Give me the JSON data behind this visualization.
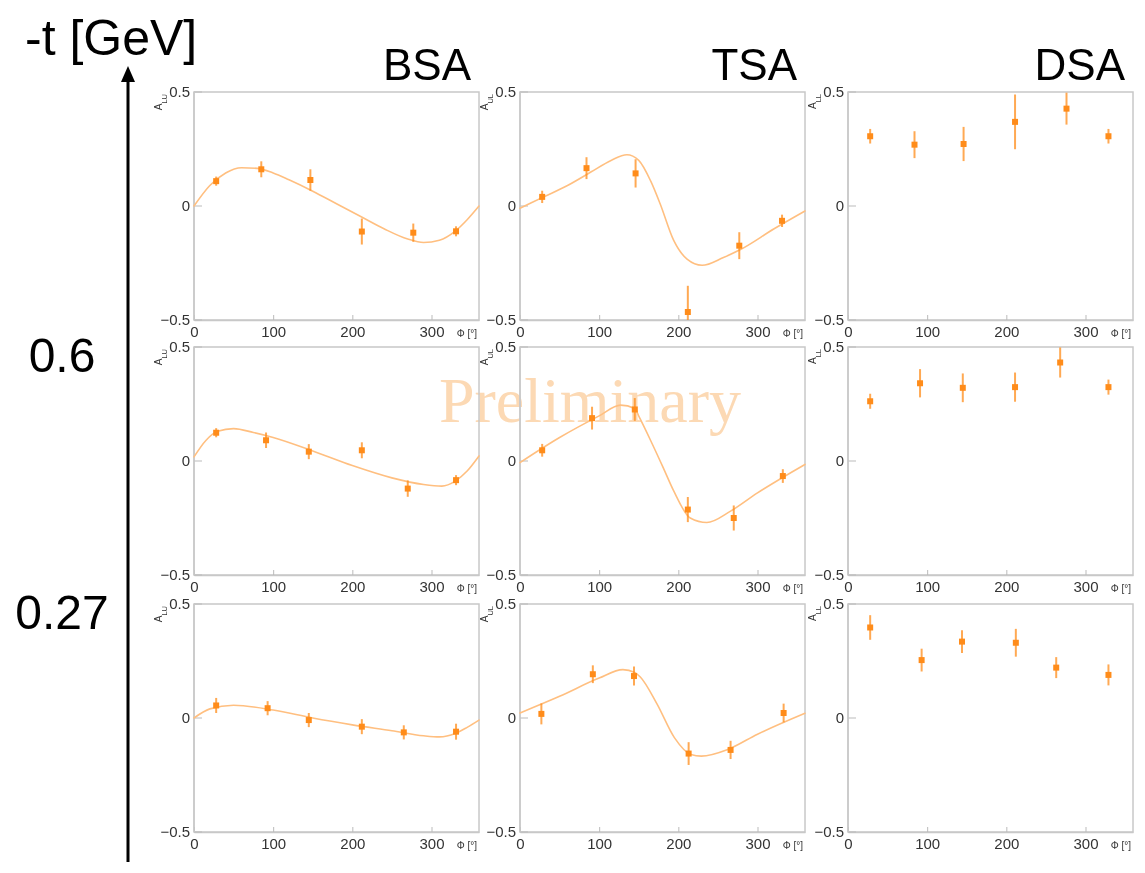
{
  "chart_data": [
    {
      "type": "scatter",
      "title": "BSA",
      "xlabel": "Φ [°]",
      "ylabel": "A$_{LU}$",
      "annotations": [
        "-t [GeV]"
      ],
      "xlim": [
        0,
        360
      ],
      "xticks": [
        0,
        100,
        200,
        300
      ],
      "ylim": [
        -0.5,
        0.5
      ],
      "yticks": [
        -0.5,
        0,
        0.5
      ],
      "marker": "square",
      "series": [
        {
          "color": "#ff8c1a",
          "x": [
            28,
            85,
            147,
            212,
            277,
            331
          ],
          "values": [
            0.109,
            0.161,
            0.114,
            -0.112,
            -0.117,
            -0.111
          ],
          "errors": [
            0.02,
            0.035,
            0.047,
            0.057,
            0.04,
            0.022
          ]
        },
        {
          "type": "line",
          "marker": "none",
          "color": "#ffbf80",
          "x": [
            0,
            20,
            40,
            60,
            80,
            100,
            120,
            150,
            180,
            210,
            240,
            270,
            290,
            310,
            330,
            345,
            360
          ],
          "values": [
            0,
            0.09,
            0.145,
            0.168,
            0.165,
            0.145,
            0.115,
            0.065,
            0.01,
            -0.045,
            -0.1,
            -0.145,
            -0.16,
            -0.15,
            -0.11,
            -0.06,
            0
          ]
        }
      ]
    },
    {
      "type": "scatter",
      "title": "TSA",
      "xlabel": "Φ [°]",
      "ylabel": "A$_{UL}$",
      "xlim": [
        0,
        360
      ],
      "xticks": [
        0,
        100,
        200,
        300
      ],
      "ylim": [
        -0.5,
        0.5
      ],
      "yticks": [
        -0.5,
        0,
        0.5
      ],
      "marker": "square",
      "series": [
        {
          "color": "#ff8c1a",
          "x": [
            28,
            84,
            146,
            212,
            277,
            331
          ],
          "values": [
            0.04,
            0.166,
            0.143,
            -0.465,
            -0.174,
            -0.065
          ],
          "errors": [
            0.027,
            0.048,
            0.062,
            [
              -0.5,
              -0.35
            ],
            0.059,
            0.027
          ]
        },
        {
          "type": "line",
          "marker": "none",
          "color": "#ffbf80",
          "x": [
            0,
            30,
            60,
            90,
            115,
            135,
            150,
            165,
            177,
            194,
            211,
            230,
            257,
            279,
            321,
            360
          ],
          "values": [
            -0.01,
            0.04,
            0.09,
            0.15,
            0.2,
            0.225,
            0.2,
            0.11,
            0.01,
            -0.15,
            -0.233,
            -0.26,
            -0.226,
            -0.19,
            -0.1,
            -0.022
          ]
        }
      ]
    },
    {
      "type": "scatter",
      "title": "DSA",
      "xlabel": "Φ [°]",
      "ylabel": "A$_{LL}$",
      "xlim": [
        0,
        360
      ],
      "xticks": [
        0,
        100,
        200,
        300
      ],
      "ylim": [
        -0.5,
        0.5
      ],
      "yticks": [
        -0.5,
        0,
        0.5
      ],
      "marker": "square",
      "series": [
        {
          "color": "#ff8c1a",
          "x": [
            28,
            84,
            146,
            211,
            276,
            329
          ],
          "values": [
            0.306,
            0.269,
            0.272,
            0.369,
            0.427,
            0.306
          ],
          "errors": [
            0.032,
            0.059,
            0.075,
            0.12,
            0.07,
            0.032
          ]
        }
      ]
    },
    {
      "type": "scatter",
      "xlabel": "Φ [°]",
      "ylabel": "A$_{LU}$",
      "annotations": [
        "0.6"
      ],
      "xlim": [
        0,
        360
      ],
      "xticks": [
        0,
        100,
        200,
        300
      ],
      "ylim": [
        -0.5,
        0.5
      ],
      "yticks": [
        -0.5,
        0,
        0.5
      ],
      "marker": "square",
      "series": [
        {
          "color": "#ff8c1a",
          "x": [
            28,
            91,
            145,
            212,
            270,
            331
          ],
          "values": [
            0.124,
            0.091,
            0.041,
            0.047,
            -0.121,
            -0.084
          ],
          "errors": [
            0.02,
            0.034,
            0.033,
            0.035,
            0.036,
            0.022
          ]
        },
        {
          "type": "line",
          "marker": "none",
          "color": "#ffbf80",
          "x": [
            0,
            15,
            30,
            50,
            75,
            100,
            150,
            200,
            250,
            290,
            313,
            330,
            345,
            360
          ],
          "values": [
            0.018,
            0.09,
            0.13,
            0.142,
            0.125,
            0.103,
            0.044,
            -0.02,
            -0.074,
            -0.103,
            -0.11,
            -0.088,
            -0.044,
            0.022
          ]
        }
      ]
    },
    {
      "type": "scatter",
      "xlabel": "Φ [°]",
      "ylabel": "A$_{UL}$",
      "annotations": [
        "Preliminary"
      ],
      "xlim": [
        0,
        360
      ],
      "xticks": [
        0,
        100,
        200,
        300
      ],
      "ylim": [
        -0.5,
        0.5
      ],
      "yticks": [
        -0.5,
        0,
        0.5
      ],
      "marker": "square",
      "series": [
        {
          "color": "#ff8c1a",
          "x": [
            28,
            91,
            145,
            212,
            270,
            332
          ],
          "values": [
            0.047,
            0.188,
            0.226,
            -0.213,
            -0.25,
            -0.066
          ],
          "errors": [
            0.028,
            0.05,
            0.05,
            0.055,
            0.055,
            0.03
          ]
        },
        {
          "type": "line",
          "marker": "none",
          "color": "#ffbf80",
          "x": [
            0,
            50,
            100,
            127,
            145,
            151,
            165,
            181,
            194,
            215,
            236,
            266,
            300,
            360
          ],
          "values": [
            -0.007,
            0.103,
            0.198,
            0.245,
            0.23,
            0.19,
            0.09,
            -0.03,
            -0.13,
            -0.25,
            -0.27,
            -0.22,
            -0.14,
            -0.015
          ]
        }
      ]
    },
    {
      "type": "scatter",
      "xlabel": "Φ [°]",
      "ylabel": "A$_{LL}$",
      "xlim": [
        0,
        360
      ],
      "xticks": [
        0,
        100,
        200,
        300
      ],
      "ylim": [
        -0.5,
        0.5
      ],
      "yticks": [
        -0.5,
        0,
        0.5
      ],
      "marker": "square",
      "series": [
        {
          "color": "#ff8c1a",
          "x": [
            28,
            91,
            145,
            211,
            268,
            329
          ],
          "values": [
            0.262,
            0.341,
            0.321,
            0.324,
            0.432,
            0.324
          ],
          "errors": [
            0.033,
            0.062,
            0.063,
            0.064,
            0.066,
            0.033
          ]
        }
      ]
    },
    {
      "type": "scatter",
      "xlabel": "Φ [°]",
      "ylabel": "A$_{LU}$",
      "annotations": [
        "0.27"
      ],
      "xlim": [
        0,
        360
      ],
      "xticks": [
        0,
        100,
        200,
        300
      ],
      "ylim": [
        -0.5,
        0.5
      ],
      "yticks": [
        -0.5,
        0,
        0.5
      ],
      "marker": "square",
      "series": [
        {
          "color": "#ff8c1a",
          "x": [
            28,
            93,
            145,
            212,
            265,
            331
          ],
          "values": [
            0.055,
            0.043,
            -0.009,
            -0.038,
            -0.063,
            -0.06
          ],
          "errors": [
            0.033,
            0.031,
            0.031,
            0.033,
            0.031,
            0.035
          ]
        },
        {
          "type": "line",
          "marker": "none",
          "color": "#ffbf80",
          "x": [
            0,
            20,
            50,
            100,
            150,
            200,
            250,
            290,
            310,
            330,
            345,
            360
          ],
          "values": [
            0,
            0.04,
            0.056,
            0.035,
            0,
            -0.03,
            -0.056,
            -0.078,
            -0.083,
            -0.068,
            -0.041,
            -0.009
          ]
        }
      ]
    },
    {
      "type": "scatter",
      "xlabel": "Φ [°]",
      "ylabel": "A$_{UL}$",
      "xlim": [
        0,
        360
      ],
      "xticks": [
        0,
        100,
        200,
        300
      ],
      "ylim": [
        -0.5,
        0.5
      ],
      "yticks": [
        -0.5,
        0,
        0.5
      ],
      "marker": "square",
      "series": [
        {
          "color": "#ff8c1a",
          "x": [
            27,
            92,
            144,
            213,
            266,
            333
          ],
          "values": [
            0.018,
            0.192,
            0.184,
            -0.156,
            -0.14,
            0.022
          ],
          "errors": [
            0.046,
            0.039,
            0.042,
            0.05,
            0.04,
            0.041
          ]
        },
        {
          "type": "line",
          "marker": "none",
          "color": "#ffbf80",
          "x": [
            0,
            50,
            100,
            130,
            145,
            152,
            173,
            195,
            216,
            229,
            263,
            300,
            360
          ],
          "values": [
            0.022,
            0.095,
            0.175,
            0.212,
            0.2,
            0.18,
            0.062,
            -0.086,
            -0.16,
            -0.167,
            -0.137,
            -0.071,
            0.021
          ]
        }
      ]
    },
    {
      "type": "scatter",
      "xlabel": "Φ [°]",
      "ylabel": "A$_{LL}$",
      "xlim": [
        0,
        360
      ],
      "xticks": [
        0,
        100,
        200,
        300
      ],
      "ylim": [
        -0.5,
        0.5
      ],
      "yticks": [
        -0.5,
        0,
        0.5
      ],
      "marker": "square",
      "series": [
        {
          "color": "#ff8c1a",
          "x": [
            28,
            93,
            144,
            212,
            263,
            329
          ],
          "values": [
            0.397,
            0.254,
            0.335,
            0.33,
            0.221,
            0.189
          ],
          "errors": [
            0.054,
            0.05,
            0.05,
            0.061,
            0.046,
            0.046
          ]
        }
      ]
    }
  ]
}
